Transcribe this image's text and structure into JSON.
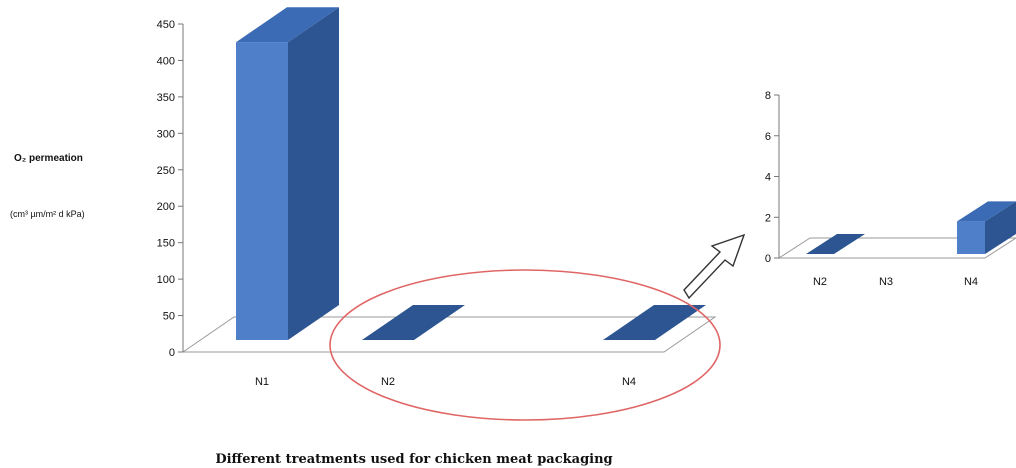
{
  "colors": {
    "bar_front": "#4f7fc9",
    "bar_side": "#2d5591",
    "bar_top": "#3b6bb5",
    "zoom_ellipse": "#e06666",
    "floor_stroke": "#9a9a9a"
  },
  "chart_data": [
    {
      "type": "bar",
      "categories": [
        "N1",
        "N2",
        "N4"
      ],
      "values": [
        425,
        0.1,
        1.8
      ],
      "ylabel_line1": "O₂ permeation",
      "ylabel_line2": "(cm³ µm/m² d kPa)",
      "xlabel": "Different treatments used for chicken meat packaging",
      "ylim": [
        0,
        450
      ],
      "yticks": [
        "0",
        "50",
        "100",
        "150",
        "200",
        "250",
        "300",
        "350",
        "400",
        "450"
      ],
      "grid": false,
      "legend": "none",
      "style": "3d-column"
    },
    {
      "type": "bar",
      "categories": [
        "N2",
        "N3",
        "N4"
      ],
      "values": [
        0.1,
        0,
        1.8
      ],
      "ylim": [
        0,
        8
      ],
      "yticks": [
        "0",
        "2",
        "4",
        "6",
        "8"
      ],
      "grid": false,
      "legend": "none",
      "style": "3d-column"
    }
  ]
}
